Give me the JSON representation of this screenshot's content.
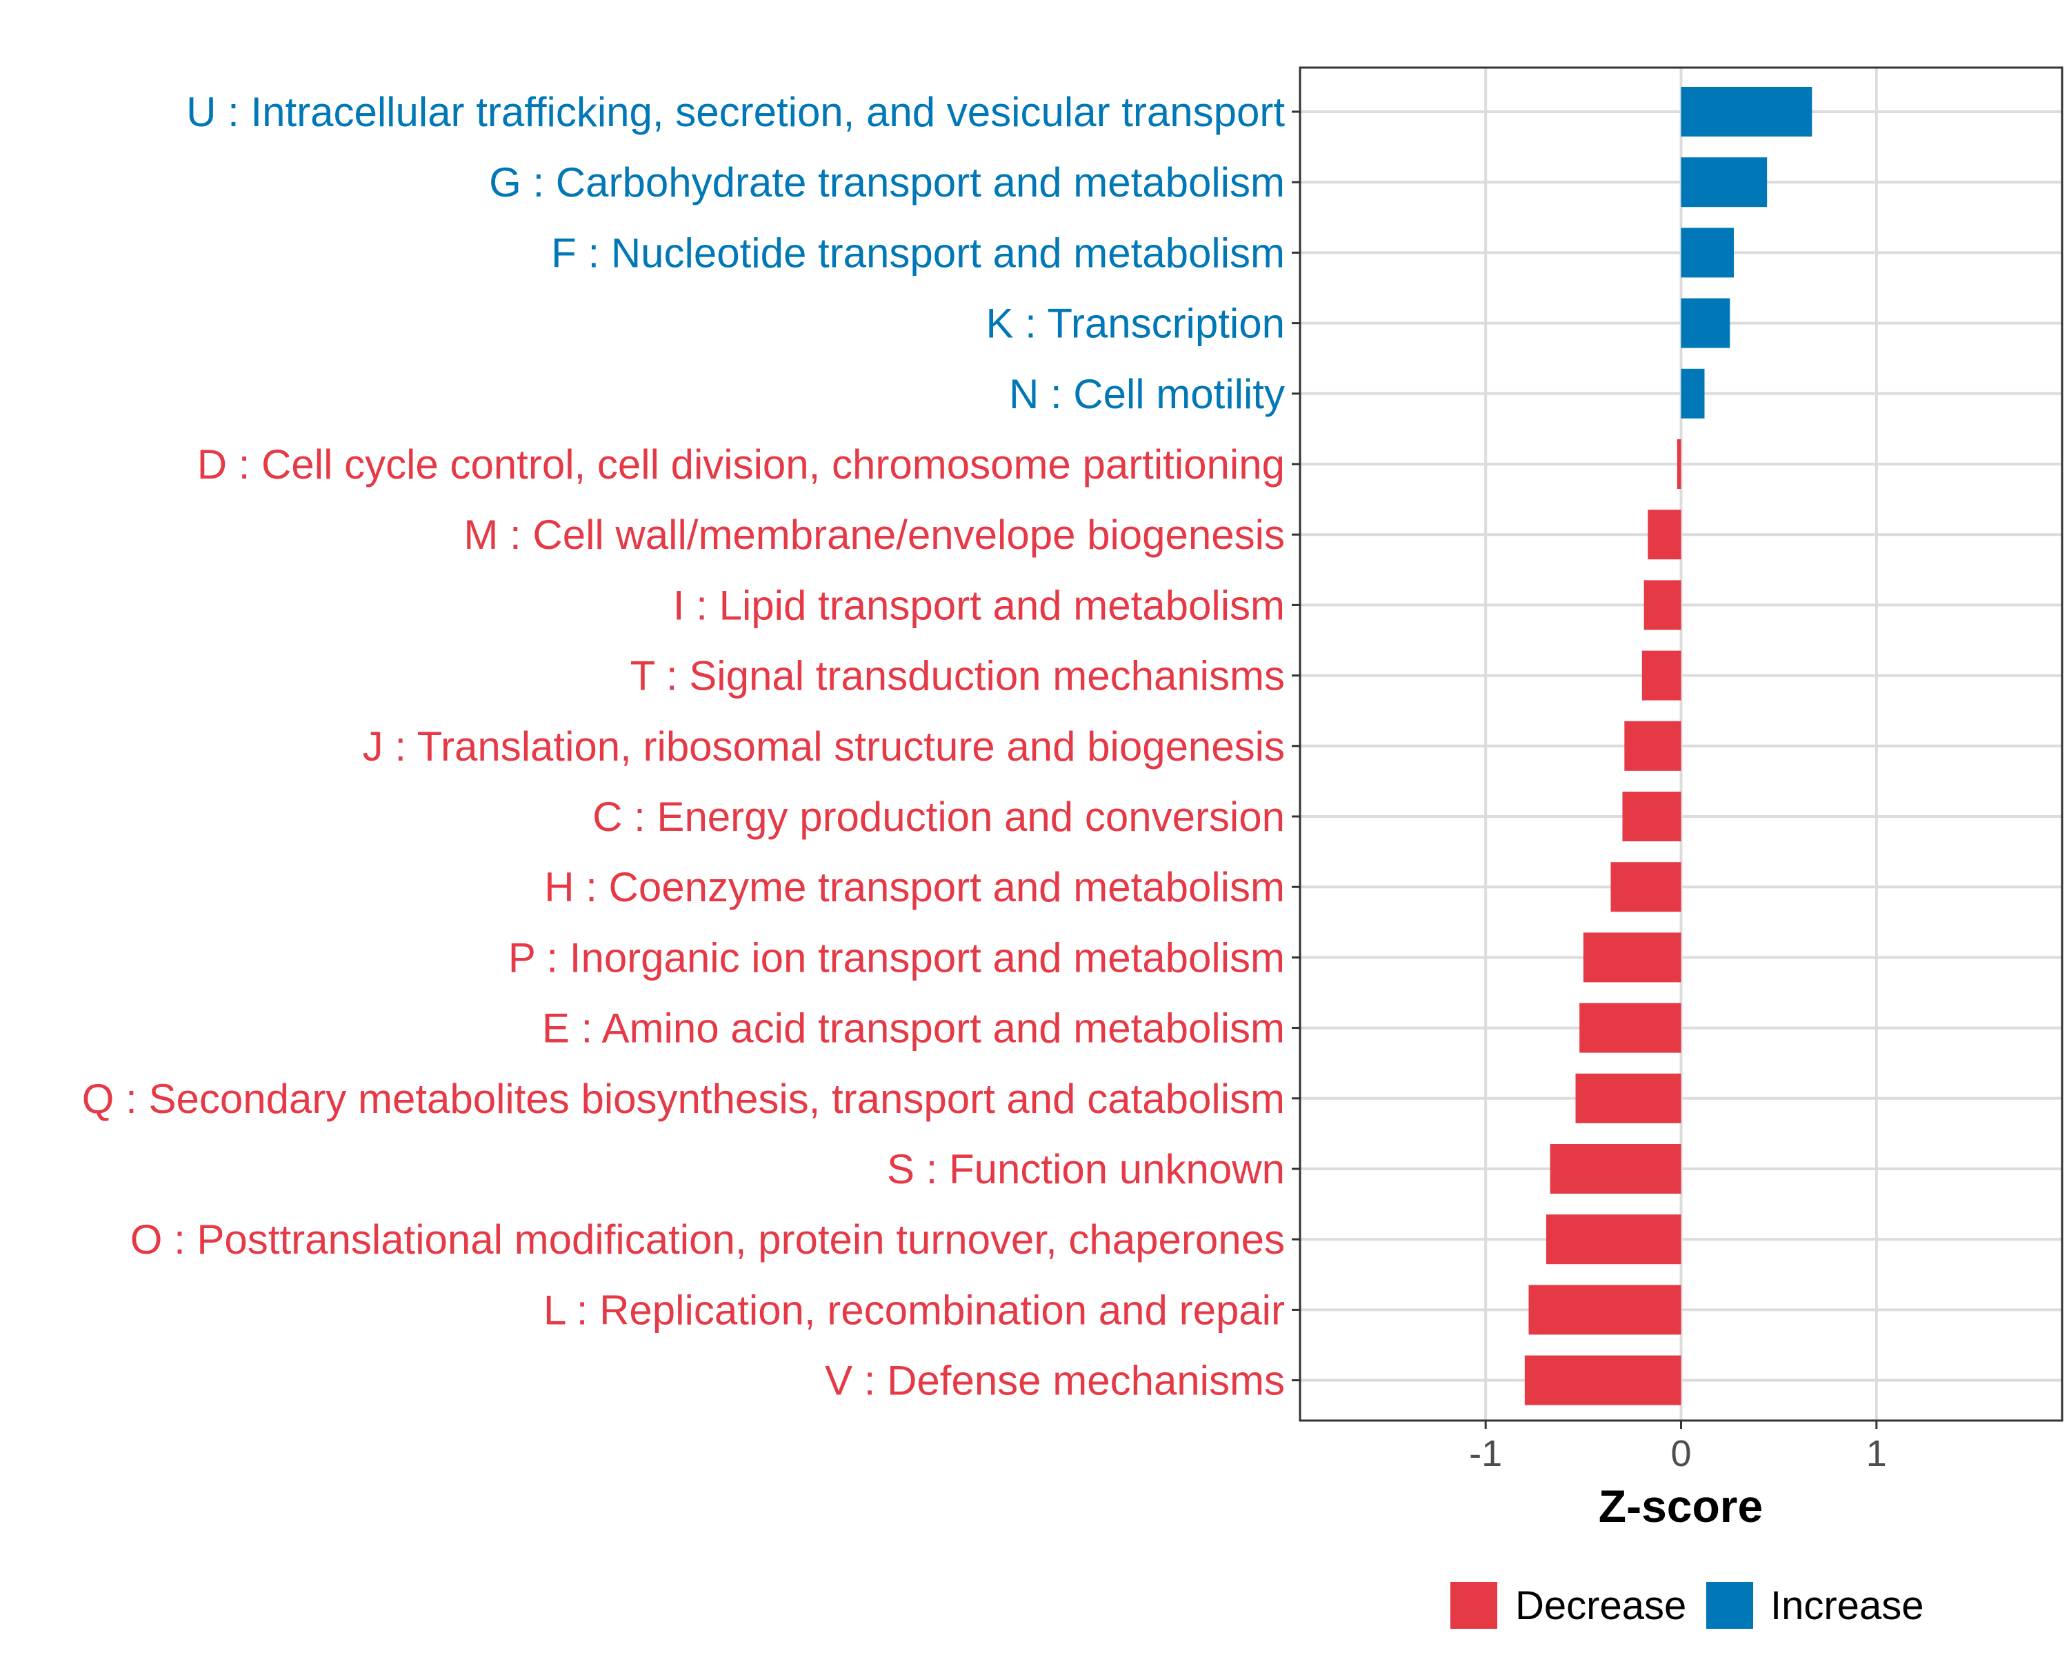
{
  "chart_data": {
    "type": "bar",
    "orientation": "horizontal",
    "title": "",
    "xlabel": "Z-score",
    "ylabel": "",
    "xlim": [
      -1.95,
      1.95
    ],
    "xticks": [
      -1,
      0,
      1
    ],
    "xtick_labels": [
      "-1",
      "0",
      "1"
    ],
    "grid": true,
    "legend_position": "bottom",
    "series": [
      {
        "name": "Decrease",
        "color": "#E63946"
      },
      {
        "name": "Increase",
        "color": "#0077B6"
      }
    ],
    "categories": [
      "U : Intracellular trafficking, secretion, and vesicular transport",
      "G : Carbohydrate transport and metabolism",
      "F : Nucleotide transport and metabolism",
      "K : Transcription",
      "N : Cell motility",
      "D : Cell cycle control, cell division, chromosome partitioning",
      "M : Cell wall/membrane/envelope biogenesis",
      "I : Lipid transport and metabolism",
      "T : Signal transduction mechanisms",
      "J : Translation, ribosomal structure and biogenesis",
      "C : Energy production and conversion",
      "H : Coenzyme transport and metabolism",
      "P : Inorganic ion transport and metabolism",
      "E : Amino acid transport and metabolism",
      "Q : Secondary metabolites biosynthesis, transport and catabolism",
      "S : Function unknown",
      "O : Posttranslational modification, protein turnover, chaperones",
      "L : Replication, recombination and repair",
      "V : Defense mechanisms"
    ],
    "values": [
      0.67,
      0.44,
      0.27,
      0.25,
      0.12,
      -0.02,
      -0.17,
      -0.19,
      -0.2,
      -0.29,
      -0.3,
      -0.36,
      -0.5,
      -0.52,
      -0.54,
      -0.67,
      -0.69,
      -0.78,
      -0.8
    ],
    "groups": [
      "Increase",
      "Increase",
      "Increase",
      "Increase",
      "Increase",
      "Decrease",
      "Decrease",
      "Decrease",
      "Decrease",
      "Decrease",
      "Decrease",
      "Decrease",
      "Decrease",
      "Decrease",
      "Decrease",
      "Decrease",
      "Decrease",
      "Decrease",
      "Decrease"
    ]
  }
}
